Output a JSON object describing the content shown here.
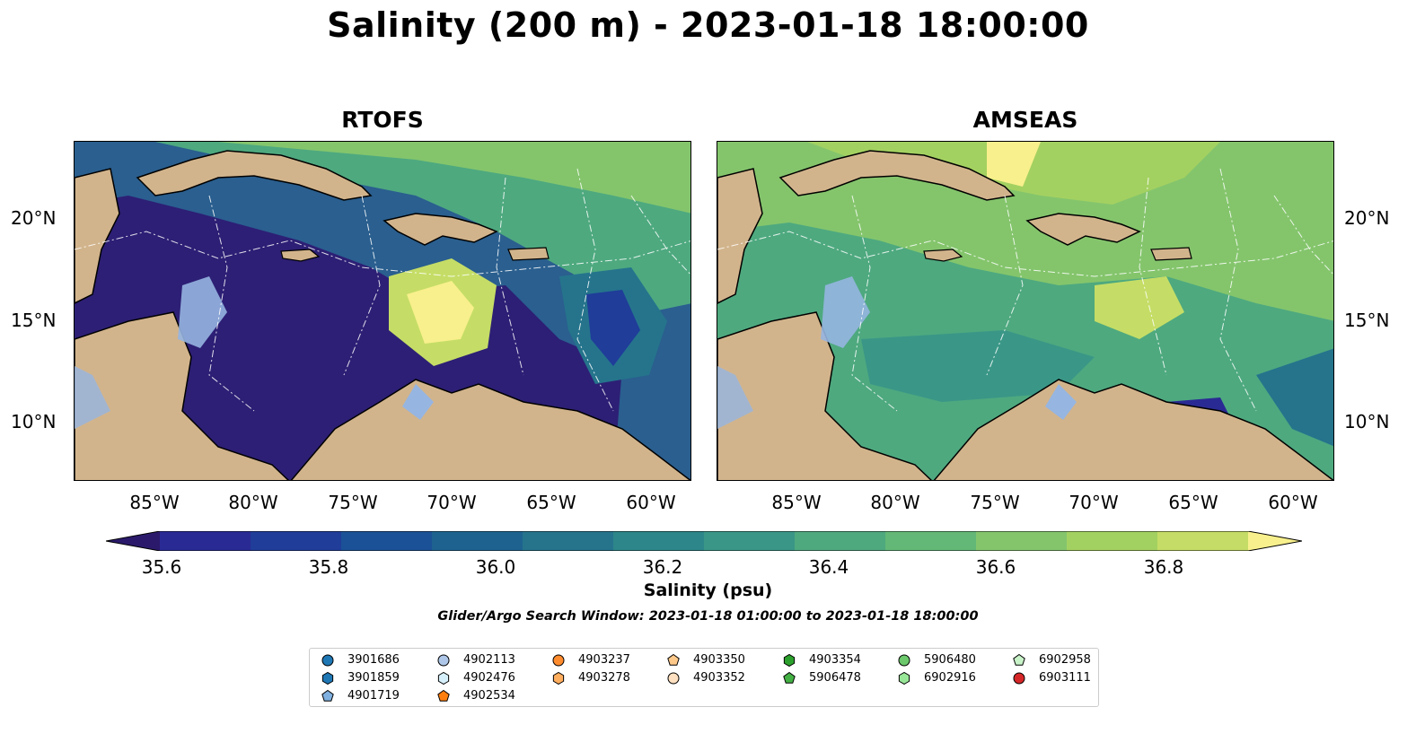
{
  "title": "Salinity (200 m) - 2023-01-18 18:00:00",
  "panels": [
    {
      "name": "RTOFS"
    },
    {
      "name": "AMSEAS"
    }
  ],
  "axes": {
    "lat_labels": [
      "20°N",
      "15°N",
      "10°N"
    ],
    "lon_labels": [
      "85°W",
      "80°W",
      "75°W",
      "70°W",
      "65°W",
      "60°W"
    ]
  },
  "colorbar": {
    "label": "Salinity (psu)",
    "ticks": [
      "35.6",
      "35.8",
      "36.0",
      "36.2",
      "36.4",
      "36.6",
      "36.8"
    ],
    "min": 35.5,
    "max": 36.9,
    "step": 0.1,
    "colors": [
      "#2b1a6b",
      "#2a2a94",
      "#1f3d99",
      "#1b5196",
      "#1e6390",
      "#25748c",
      "#2d8689",
      "#3a9787",
      "#4ea97f",
      "#63b877",
      "#84c56c",
      "#a3d161",
      "#c5dd66",
      "#f8f08c"
    ]
  },
  "search_window": "Glider/Argo Search Window: 2023-01-18 01:00:00 to 2023-01-18 18:00:00",
  "legend": [
    {
      "id": "3901686",
      "marker": "circle",
      "color": "#1f77b4"
    },
    {
      "id": "3901859",
      "marker": "hexagon",
      "color": "#1f77b4"
    },
    {
      "id": "4901719",
      "marker": "pentagon",
      "color": "#7fb0df"
    },
    {
      "id": "4902113",
      "marker": "circle",
      "color": "#aec7e8"
    },
    {
      "id": "4902476",
      "marker": "hexagon",
      "color": "#d6f0fb"
    },
    {
      "id": "4902534",
      "marker": "pentagon",
      "color": "#ff7f0e"
    },
    {
      "id": "4903237",
      "marker": "circle",
      "color": "#ff8c2e"
    },
    {
      "id": "4903278",
      "marker": "hexagon",
      "color": "#ffae5e"
    },
    {
      "id": "4903350",
      "marker": "pentagon",
      "color": "#ffc98a"
    },
    {
      "id": "4903352",
      "marker": "circle",
      "color": "#ffe0c0"
    },
    {
      "id": "4903354",
      "marker": "hexagon",
      "color": "#2ca02c"
    },
    {
      "id": "5906478",
      "marker": "pentagon",
      "color": "#43b043"
    },
    {
      "id": "5906480",
      "marker": "circle",
      "color": "#6bc86b"
    },
    {
      "id": "6902916",
      "marker": "hexagon",
      "color": "#98e698"
    },
    {
      "id": "6902958",
      "marker": "pentagon",
      "color": "#c8f2c8"
    },
    {
      "id": "6903111",
      "marker": "circle",
      "color": "#d62728"
    }
  ],
  "map_colors": {
    "land": "#d2b48c",
    "shelf": "#96b5e1",
    "rtofs_base": "#2d1f75",
    "amseas_base": "#4ea97f"
  }
}
